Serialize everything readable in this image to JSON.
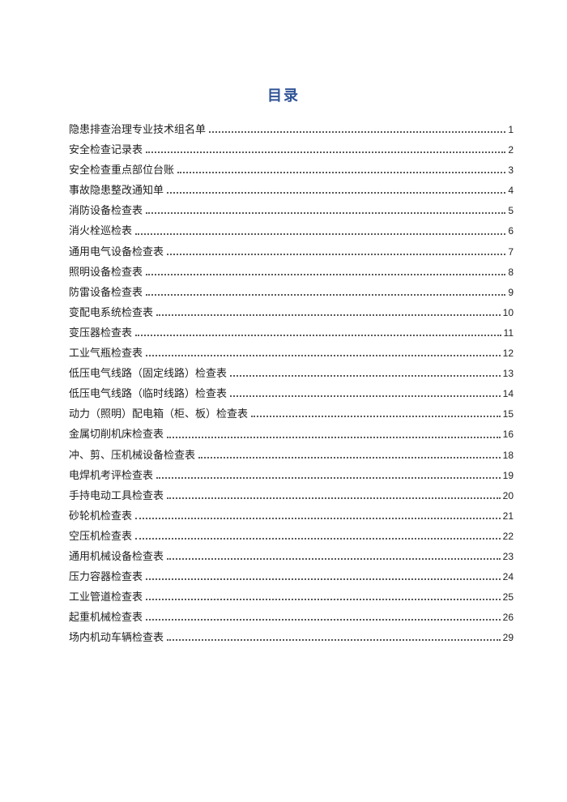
{
  "toc": {
    "title": "目录",
    "entries": [
      {
        "title": "隐患排查治理专业技术组名单",
        "page": "1"
      },
      {
        "title": "安全检查记录表",
        "page": "2"
      },
      {
        "title": "安全检查重点部位台账",
        "page": "3"
      },
      {
        "title": "事故隐患整改通知单",
        "page": "4"
      },
      {
        "title": "消防设备检查表",
        "page": "5"
      },
      {
        "title": "消火栓巡检表",
        "page": "6"
      },
      {
        "title": "通用电气设备检查表",
        "page": "7"
      },
      {
        "title": "照明设备检查表",
        "page": "8"
      },
      {
        "title": "防雷设备检查表",
        "page": "9"
      },
      {
        "title": "变配电系统检查表",
        "page": "10"
      },
      {
        "title": "变压器检查表",
        "page": "11"
      },
      {
        "title": "工业气瓶检查表",
        "page": "12"
      },
      {
        "title": "低压电气线路（固定线路）检查表",
        "page": "13"
      },
      {
        "title": "低压电气线路（临时线路）检查表",
        "page": "14"
      },
      {
        "title": "动力（照明）配电箱（柜、板）检查表",
        "page": "15"
      },
      {
        "title": "金属切削机床检查表",
        "page": "16"
      },
      {
        "title": "冲、剪、压机械设备检查表",
        "page": "18"
      },
      {
        "title": "电焊机考评检查表",
        "page": "19"
      },
      {
        "title": "手持电动工具检查表",
        "page": "20"
      },
      {
        "title": "砂轮机检查表",
        "page": "21"
      },
      {
        "title": "空压机检查表",
        "page": "22"
      },
      {
        "title": "通用机械设备检查表",
        "page": "23"
      },
      {
        "title": "压力容器检查表",
        "page": "24"
      },
      {
        "title": "工业管道检查表",
        "page": "25"
      },
      {
        "title": "起重机械检查表",
        "page": "26"
      },
      {
        "title": "场内机动车辆检查表",
        "page": "29"
      }
    ]
  },
  "colors": {
    "title_blue": "#2F5496",
    "body_text": "#212121",
    "dot_leader": "#595959",
    "page_background": "#FFFFFF"
  }
}
